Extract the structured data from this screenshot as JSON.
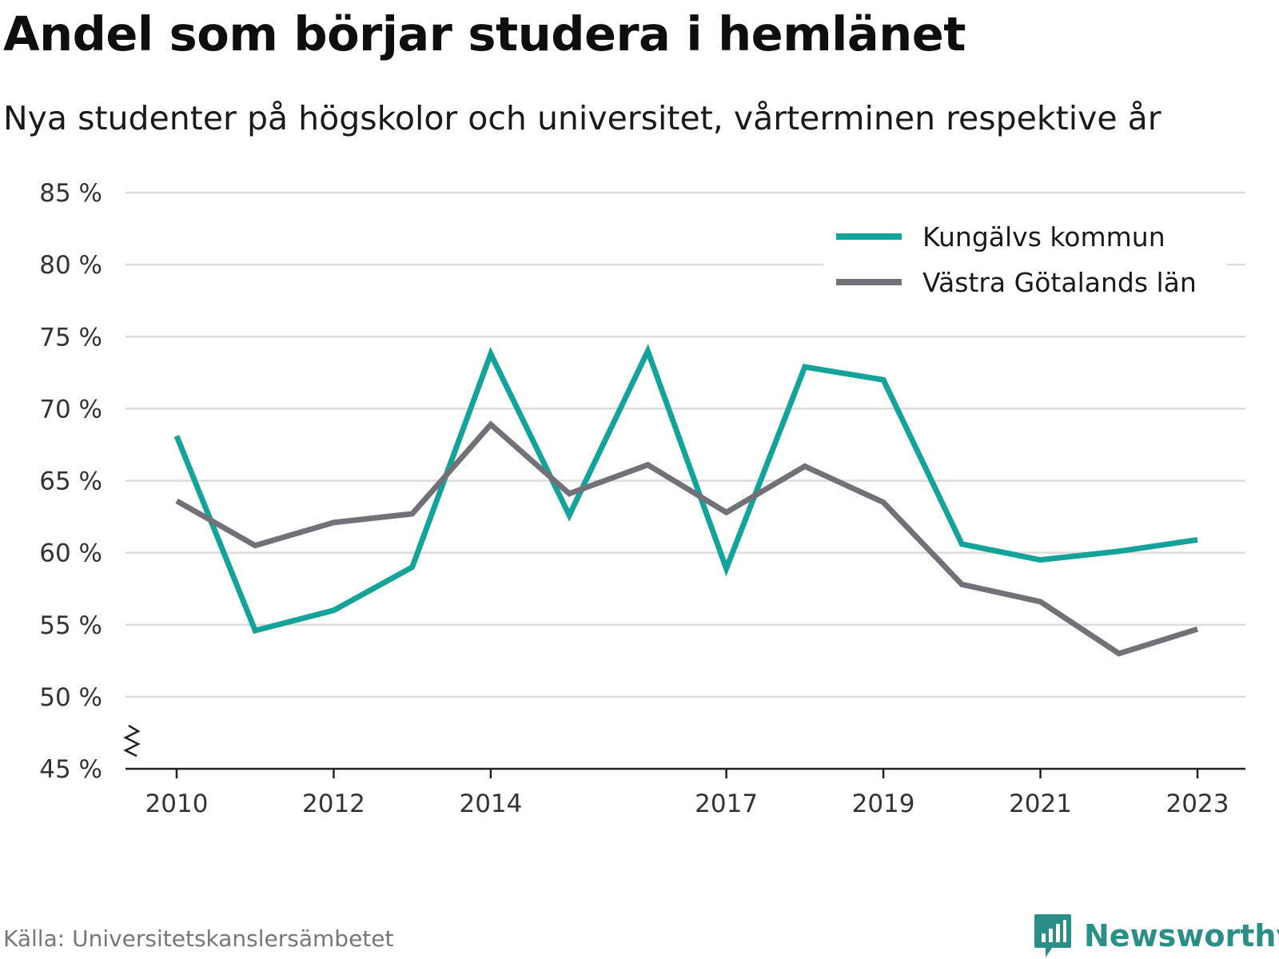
{
  "header": {
    "title": "Andel som börjar studera i hemlänet",
    "subtitle": "Nya studenter på högskolor och universitet, vårterminen respektive år"
  },
  "footer": {
    "source": "Källa: Universitetskanslersämbetet",
    "brand": "Newsworthy"
  },
  "colors": {
    "kungalv": "#13a39a",
    "vgl": "#727177",
    "grid": "#dcdcdc",
    "axis": "#222222",
    "brand": "#2a8f86"
  },
  "chart_data": {
    "type": "line",
    "x": [
      2010,
      2011,
      2012,
      2013,
      2014,
      2015,
      2016,
      2017,
      2018,
      2019,
      2020,
      2021,
      2022,
      2023
    ],
    "x_tick_labels": [
      "2010",
      "2012",
      "2014",
      "2017",
      "2019",
      "2021",
      "2023"
    ],
    "y_tick_labels": [
      "45 %",
      "50 %",
      "55 %",
      "60 %",
      "65 %",
      "70 %",
      "75 %",
      "80 %",
      "85 %"
    ],
    "ylim": [
      45,
      85
    ],
    "y_axis_break": true,
    "grid": true,
    "legend_position": "top-right",
    "series": [
      {
        "name": "Kungälvs kommun",
        "color_key": "kungalv",
        "values": [
          68.1,
          54.6,
          56.0,
          59.0,
          73.8,
          62.6,
          74.0,
          58.9,
          72.9,
          72.0,
          60.6,
          59.5,
          60.1,
          60.9
        ]
      },
      {
        "name": "Västra Götalands län",
        "color_key": "vgl",
        "values": [
          63.6,
          60.5,
          62.1,
          62.7,
          68.9,
          64.1,
          66.1,
          62.8,
          66.0,
          63.5,
          57.8,
          56.6,
          53.0,
          54.7
        ]
      }
    ]
  }
}
